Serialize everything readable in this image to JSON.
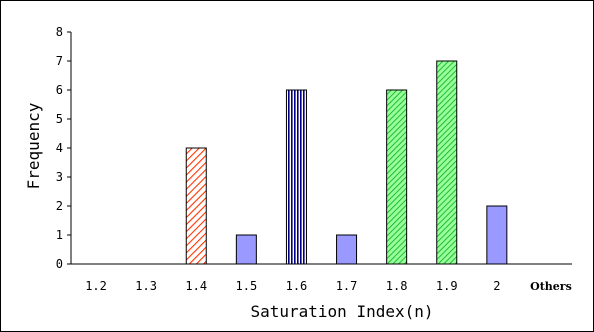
{
  "chart_data": {
    "type": "bar",
    "categories": [
      "1.2",
      "1.3",
      "1.4",
      "1.5",
      "1.6",
      "1.7",
      "1.8",
      "1.9",
      "2",
      "Others"
    ],
    "values": [
      0,
      0,
      4,
      1,
      6,
      1,
      6,
      7,
      2,
      0
    ],
    "xlabel": "Saturation Index(n)",
    "ylabel": "Frequency",
    "ylim": [
      0,
      8
    ],
    "yticks": [
      "0",
      "1",
      "2",
      "3",
      "4",
      "5",
      "6",
      "7",
      "8"
    ],
    "grid": false,
    "legend": "none",
    "bar_styles": [
      "solid",
      "solid",
      "red-hatch",
      "solid",
      "blue-vertical-stripes",
      "solid",
      "green-hatch",
      "green-hatch",
      "solid",
      "solid"
    ],
    "colors": {
      "solid_fill": "#9999ff",
      "red_hatch": "#ff3300",
      "blue_stripes": "#000080",
      "green_hatch": "#00cc33",
      "green_fill": "#99ff99",
      "outline": "#000000"
    }
  }
}
